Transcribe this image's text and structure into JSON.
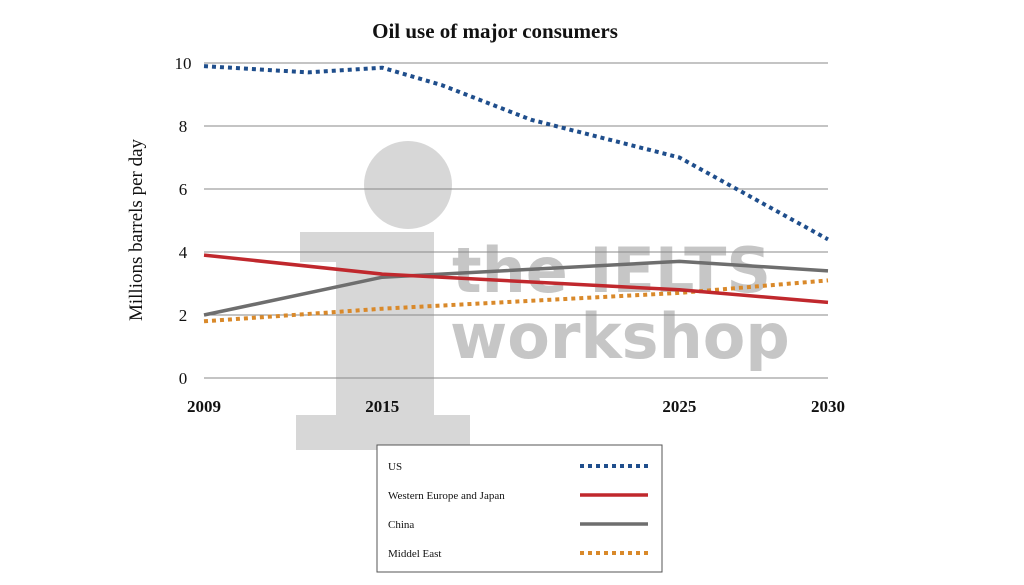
{
  "chart_data": {
    "type": "line",
    "title": "Oil use of major consumers",
    "xlabel": "",
    "ylabel": "Millions barrels per day",
    "categories": [
      "2009",
      "2015",
      "2025",
      "2030"
    ],
    "x": [
      2009,
      2015,
      2025,
      2030
    ],
    "yticks": [
      "0",
      "2",
      "4",
      "6",
      "8",
      "10"
    ],
    "ylim": [
      0,
      10
    ],
    "grid": true,
    "legend": "bottom",
    "series": [
      {
        "name": "US",
        "color": "#1f4e8c",
        "dashed": true,
        "points": [
          [
            2009,
            9.9
          ],
          [
            2012.5,
            9.7
          ],
          [
            2015,
            9.85
          ],
          [
            2017,
            9.3
          ],
          [
            2020,
            8.2
          ],
          [
            2025,
            7.0
          ],
          [
            2030,
            4.4
          ]
        ]
      },
      {
        "name": "Western Europe and Japan",
        "color": "#c0282d",
        "dashed": false,
        "points": [
          [
            2009,
            3.9
          ],
          [
            2015,
            3.3
          ],
          [
            2025,
            2.8
          ],
          [
            2030,
            2.4
          ]
        ]
      },
      {
        "name": "China",
        "color": "#6e6e6e",
        "dashed": false,
        "points": [
          [
            2009,
            2.0
          ],
          [
            2015,
            3.2
          ],
          [
            2025,
            3.7
          ],
          [
            2030,
            3.4
          ]
        ]
      },
      {
        "name": "Middel East",
        "color": "#d9892a",
        "dashed": true,
        "points": [
          [
            2009,
            1.8
          ],
          [
            2015,
            2.2
          ],
          [
            2025,
            2.7
          ],
          [
            2030,
            3.1
          ]
        ]
      }
    ]
  },
  "watermark": {
    "line1": "the IELTS",
    "line2": "workshop"
  }
}
